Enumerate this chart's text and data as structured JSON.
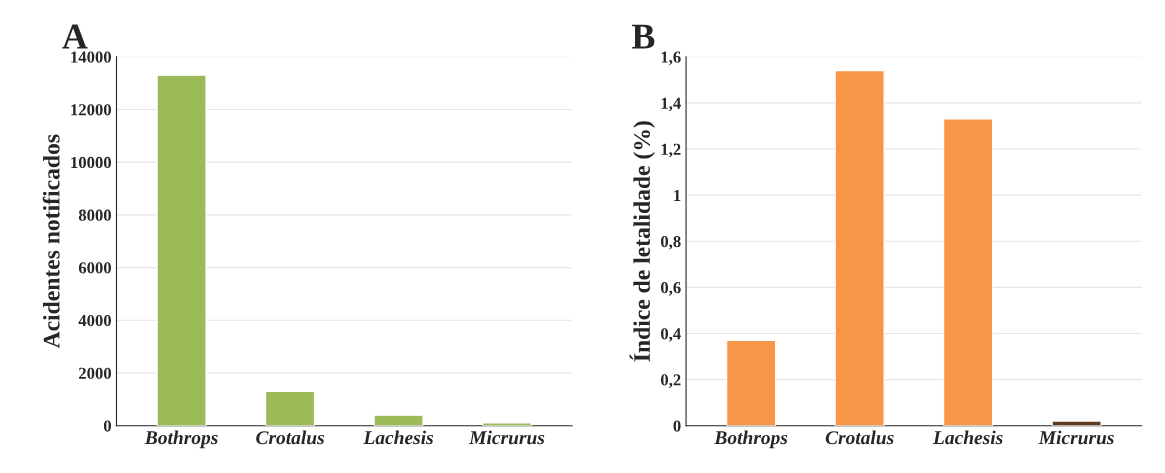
{
  "chart_data": [
    {
      "type": "bar",
      "title": "A",
      "ylabel": "Acidentes notificados",
      "categories": [
        "Bothrops",
        "Crotalus",
        "Lachesis",
        "Micrurus"
      ],
      "values": [
        13300,
        1300,
        400,
        100
      ],
      "colors": [
        "#9bbb59",
        "#9bbb59",
        "#9bbb59",
        "#9bbb59"
      ],
      "ylim": [
        0,
        14000
      ],
      "yticks": [
        0,
        2000,
        4000,
        6000,
        8000,
        10000,
        12000,
        14000
      ],
      "grid": "y"
    },
    {
      "type": "bar",
      "title": "B",
      "ylabel": "Índice de letalidade (%)",
      "categories": [
        "Bothrops",
        "Crotalus",
        "Lachesis",
        "Micrurus"
      ],
      "values": [
        0.37,
        1.54,
        1.33,
        0.02
      ],
      "colors": [
        "#f79646",
        "#f79646",
        "#f79646",
        "#5c3a1e"
      ],
      "ylim": [
        0,
        1.6
      ],
      "yticks": [
        0,
        {
          "value": 0.2,
          "label": "0,2"
        },
        {
          "value": 0.4,
          "label": "0,4"
        },
        {
          "value": 0.6,
          "label": "0,6"
        },
        {
          "value": 0.8,
          "label": "0,8"
        },
        1,
        {
          "value": 1.2,
          "label": "1,2"
        },
        {
          "value": 1.4,
          "label": "1,4"
        },
        {
          "value": 1.6,
          "label": "1,6"
        }
      ],
      "grid": "y"
    }
  ]
}
